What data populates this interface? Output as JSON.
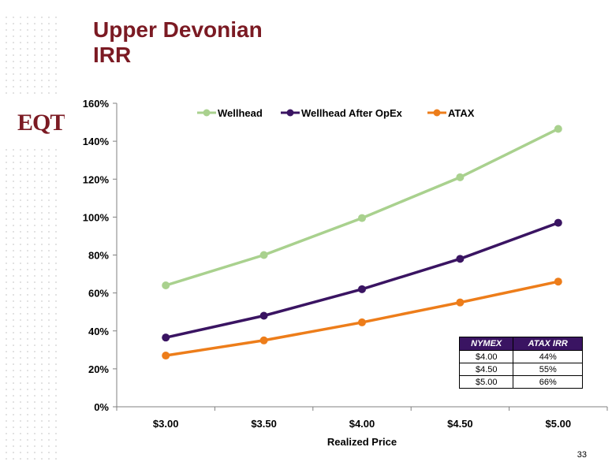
{
  "slide": {
    "title_line1": "Upper Devonian",
    "title_line2": "IRR",
    "logo_text": "EQT",
    "page_number": "33"
  },
  "colors": {
    "title": "#7b1a23",
    "wellhead": "#a9d18e",
    "wellhead_after_opex": "#3a1462",
    "atax": "#ed7d1a",
    "table_header": "#3a1462"
  },
  "chart_data": {
    "type": "line",
    "categories": [
      "$3.00",
      "$3.50",
      "$4.00",
      "$4.50",
      "$5.00"
    ],
    "series": [
      {
        "name": "Wellhead",
        "values": [
          64,
          80,
          99.5,
          121,
          146.5
        ]
      },
      {
        "name": "Wellhead After OpEx",
        "values": [
          36.5,
          48,
          62,
          78,
          97
        ]
      },
      {
        "name": "ATAX",
        "values": [
          27,
          35,
          44.5,
          55,
          66
        ]
      }
    ],
    "xlabel": "Realized Price",
    "ylabel": "",
    "ylim": [
      0,
      160
    ],
    "yticks": [
      0,
      20,
      40,
      60,
      80,
      100,
      120,
      140,
      160
    ],
    "ytick_format": "percent",
    "legend": "top",
    "grid": false
  },
  "irr_table": {
    "headers": [
      "NYMEX",
      "ATAX IRR"
    ],
    "rows": [
      [
        "$4.00",
        "44%"
      ],
      [
        "$4.50",
        "55%"
      ],
      [
        "$5.00",
        "66%"
      ]
    ]
  }
}
